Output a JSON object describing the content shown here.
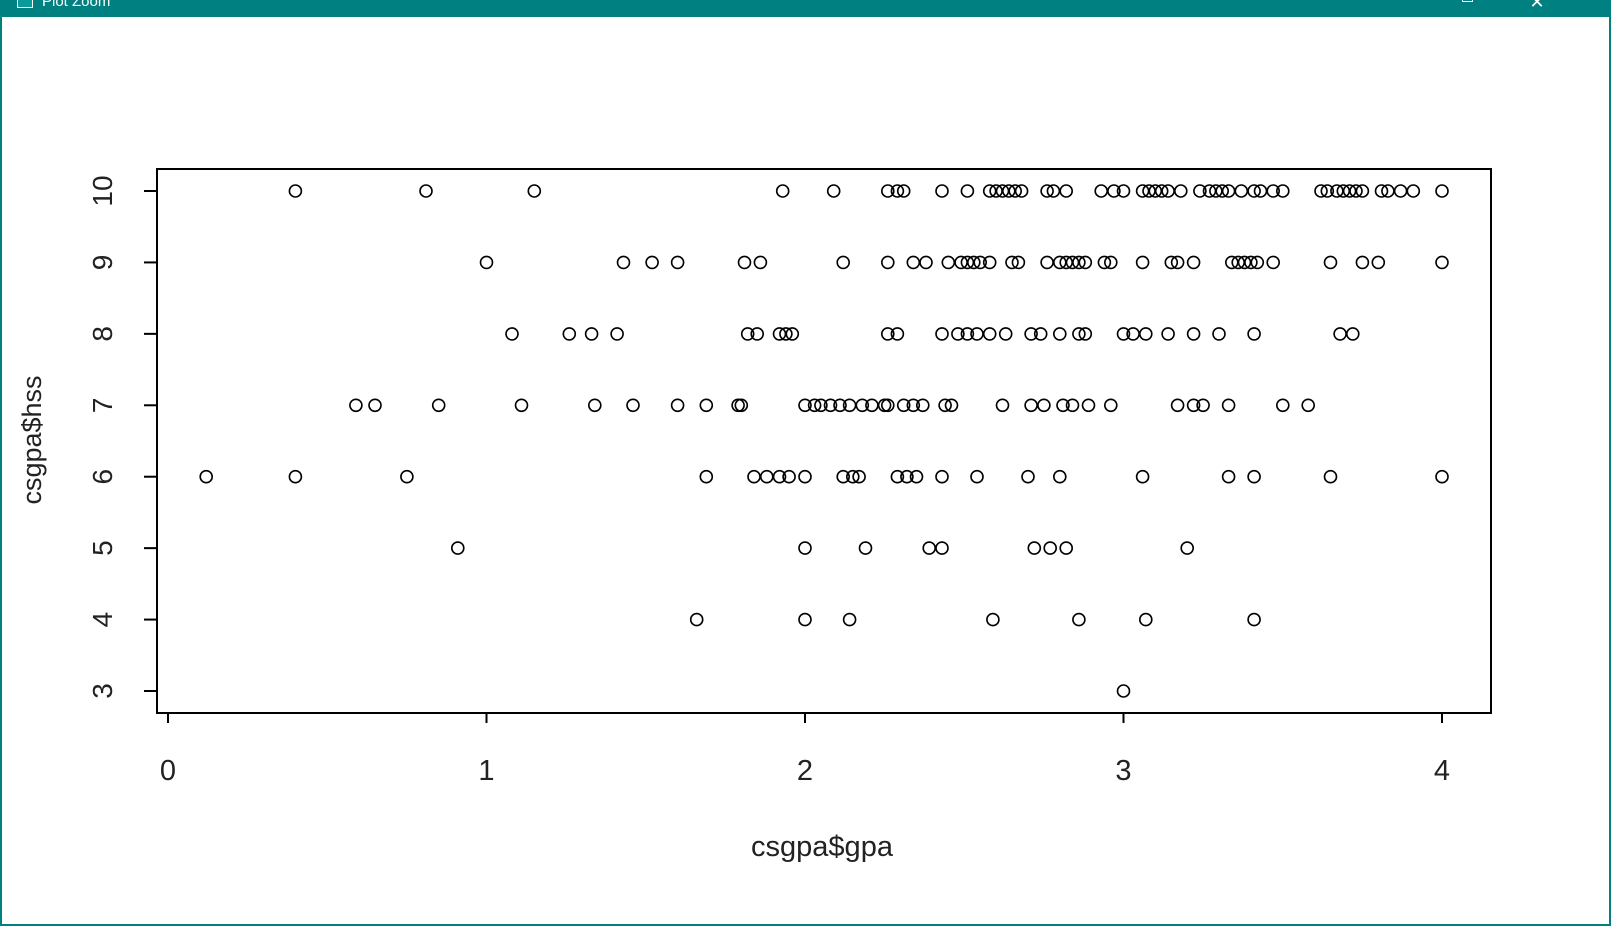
{
  "window": {
    "title": "Plot Zoom",
    "icon": "plot-window-icon",
    "buttons": {
      "maximize_icon": "maximize-icon",
      "close_glyph": "✕"
    },
    "accent_color": "#008080"
  },
  "chart_data": {
    "type": "scatter",
    "xlabel": "csgpa$gpa",
    "ylabel": "csgpa$hss",
    "xlim": [
      0,
      4.15
    ],
    "ylim": [
      2.7,
      10.3
    ],
    "xticks": [
      0,
      1,
      2,
      3,
      4
    ],
    "yticks": [
      3,
      4,
      5,
      6,
      7,
      8,
      9,
      10
    ],
    "marker": "open-circle",
    "grid": false,
    "points": [
      [
        0.4,
        10
      ],
      [
        0.81,
        10
      ],
      [
        1.15,
        10
      ],
      [
        1.93,
        10
      ],
      [
        2.09,
        10
      ],
      [
        2.26,
        10
      ],
      [
        2.29,
        10
      ],
      [
        2.31,
        10
      ],
      [
        2.43,
        10
      ],
      [
        2.51,
        10
      ],
      [
        2.58,
        10
      ],
      [
        2.6,
        10
      ],
      [
        2.62,
        10
      ],
      [
        2.64,
        10
      ],
      [
        2.66,
        10
      ],
      [
        2.68,
        10
      ],
      [
        2.76,
        10
      ],
      [
        2.78,
        10
      ],
      [
        2.82,
        10
      ],
      [
        2.93,
        10
      ],
      [
        2.97,
        10
      ],
      [
        3.0,
        10
      ],
      [
        3.06,
        10
      ],
      [
        3.08,
        10
      ],
      [
        3.1,
        10
      ],
      [
        3.12,
        10
      ],
      [
        3.14,
        10
      ],
      [
        3.18,
        10
      ],
      [
        3.24,
        10
      ],
      [
        3.27,
        10
      ],
      [
        3.29,
        10
      ],
      [
        3.31,
        10
      ],
      [
        3.33,
        10
      ],
      [
        3.37,
        10
      ],
      [
        3.41,
        10
      ],
      [
        3.43,
        10
      ],
      [
        3.47,
        10
      ],
      [
        3.5,
        10
      ],
      [
        3.62,
        10
      ],
      [
        3.64,
        10
      ],
      [
        3.67,
        10
      ],
      [
        3.69,
        10
      ],
      [
        3.71,
        10
      ],
      [
        3.73,
        10
      ],
      [
        3.75,
        10
      ],
      [
        3.81,
        10
      ],
      [
        3.83,
        10
      ],
      [
        3.87,
        10
      ],
      [
        3.91,
        10
      ],
      [
        4.0,
        10
      ],
      [
        1.0,
        9
      ],
      [
        1.43,
        9
      ],
      [
        1.52,
        9
      ],
      [
        1.6,
        9
      ],
      [
        1.81,
        9
      ],
      [
        1.86,
        9
      ],
      [
        2.12,
        9
      ],
      [
        2.26,
        9
      ],
      [
        2.34,
        9
      ],
      [
        2.38,
        9
      ],
      [
        2.45,
        9
      ],
      [
        2.49,
        9
      ],
      [
        2.51,
        9
      ],
      [
        2.53,
        9
      ],
      [
        2.55,
        9
      ],
      [
        2.58,
        9
      ],
      [
        2.65,
        9
      ],
      [
        2.67,
        9
      ],
      [
        2.76,
        9
      ],
      [
        2.8,
        9
      ],
      [
        2.82,
        9
      ],
      [
        2.84,
        9
      ],
      [
        2.86,
        9
      ],
      [
        2.88,
        9
      ],
      [
        2.94,
        9
      ],
      [
        2.96,
        9
      ],
      [
        3.06,
        9
      ],
      [
        3.15,
        9
      ],
      [
        3.17,
        9
      ],
      [
        3.22,
        9
      ],
      [
        3.34,
        9
      ],
      [
        3.36,
        9
      ],
      [
        3.38,
        9
      ],
      [
        3.4,
        9
      ],
      [
        3.42,
        9
      ],
      [
        3.47,
        9
      ],
      [
        3.65,
        9
      ],
      [
        3.75,
        9
      ],
      [
        3.8,
        9
      ],
      [
        4.0,
        9
      ],
      [
        1.08,
        8
      ],
      [
        1.26,
        8
      ],
      [
        1.33,
        8
      ],
      [
        1.41,
        8
      ],
      [
        1.82,
        8
      ],
      [
        1.85,
        8
      ],
      [
        1.92,
        8
      ],
      [
        1.94,
        8
      ],
      [
        1.96,
        8
      ],
      [
        2.26,
        8
      ],
      [
        2.29,
        8
      ],
      [
        2.43,
        8
      ],
      [
        2.48,
        8
      ],
      [
        2.51,
        8
      ],
      [
        2.54,
        8
      ],
      [
        2.58,
        8
      ],
      [
        2.63,
        8
      ],
      [
        2.71,
        8
      ],
      [
        2.74,
        8
      ],
      [
        2.8,
        8
      ],
      [
        2.86,
        8
      ],
      [
        2.88,
        8
      ],
      [
        3.0,
        8
      ],
      [
        3.03,
        8
      ],
      [
        3.07,
        8
      ],
      [
        3.14,
        8
      ],
      [
        3.22,
        8
      ],
      [
        3.3,
        8
      ],
      [
        3.41,
        8
      ],
      [
        3.68,
        8
      ],
      [
        3.72,
        8
      ],
      [
        0.59,
        7
      ],
      [
        0.65,
        7
      ],
      [
        0.85,
        7
      ],
      [
        1.11,
        7
      ],
      [
        1.34,
        7
      ],
      [
        1.46,
        7
      ],
      [
        1.6,
        7
      ],
      [
        1.69,
        7
      ],
      [
        1.79,
        7
      ],
      [
        1.8,
        7
      ],
      [
        2.0,
        7
      ],
      [
        2.03,
        7
      ],
      [
        2.05,
        7
      ],
      [
        2.08,
        7
      ],
      [
        2.11,
        7
      ],
      [
        2.14,
        7
      ],
      [
        2.18,
        7
      ],
      [
        2.21,
        7
      ],
      [
        2.25,
        7
      ],
      [
        2.26,
        7
      ],
      [
        2.31,
        7
      ],
      [
        2.34,
        7
      ],
      [
        2.37,
        7
      ],
      [
        2.44,
        7
      ],
      [
        2.46,
        7
      ],
      [
        2.62,
        7
      ],
      [
        2.71,
        7
      ],
      [
        2.75,
        7
      ],
      [
        2.81,
        7
      ],
      [
        2.84,
        7
      ],
      [
        2.89,
        7
      ],
      [
        2.96,
        7
      ],
      [
        3.17,
        7
      ],
      [
        3.22,
        7
      ],
      [
        3.25,
        7
      ],
      [
        3.33,
        7
      ],
      [
        3.5,
        7
      ],
      [
        3.58,
        7
      ],
      [
        0.12,
        6
      ],
      [
        0.4,
        6
      ],
      [
        0.75,
        6
      ],
      [
        1.69,
        6
      ],
      [
        1.84,
        6
      ],
      [
        1.88,
        6
      ],
      [
        1.92,
        6
      ],
      [
        1.95,
        6
      ],
      [
        2.0,
        6
      ],
      [
        2.12,
        6
      ],
      [
        2.15,
        6
      ],
      [
        2.17,
        6
      ],
      [
        2.29,
        6
      ],
      [
        2.32,
        6
      ],
      [
        2.35,
        6
      ],
      [
        2.43,
        6
      ],
      [
        2.54,
        6
      ],
      [
        2.7,
        6
      ],
      [
        2.8,
        6
      ],
      [
        3.06,
        6
      ],
      [
        3.33,
        6
      ],
      [
        3.41,
        6
      ],
      [
        3.65,
        6
      ],
      [
        4.0,
        6
      ],
      [
        0.91,
        5
      ],
      [
        2.0,
        5
      ],
      [
        2.19,
        5
      ],
      [
        2.39,
        5
      ],
      [
        2.43,
        5
      ],
      [
        2.72,
        5
      ],
      [
        2.77,
        5
      ],
      [
        2.82,
        5
      ],
      [
        3.2,
        5
      ],
      [
        1.66,
        4
      ],
      [
        2.0,
        4
      ],
      [
        2.14,
        4
      ],
      [
        2.59,
        4
      ],
      [
        2.86,
        4
      ],
      [
        3.07,
        4
      ],
      [
        3.41,
        4
      ],
      [
        3.0,
        3
      ]
    ]
  }
}
